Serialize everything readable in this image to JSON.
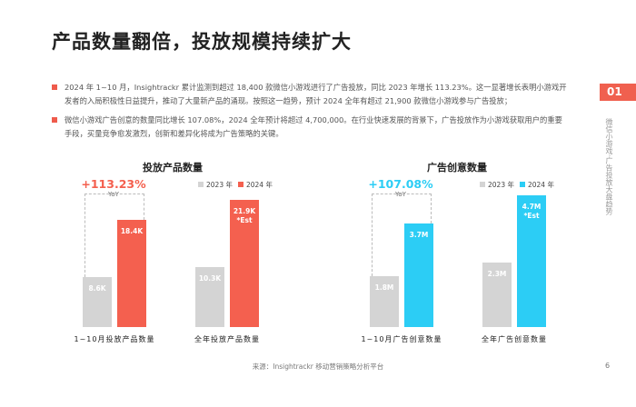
{
  "title": "产品数量翻倍，投放规模持续扩大",
  "bullets": [
    "2024 年 1~10 月，Insightrackr 累计监测到超过 18,400 款微信小游戏进行了广告投放，同比 2023 年增长 113.23%。这一显著增长表明小游戏开发者的入局积极性日益提升，推动了大量新产品的涌现。按照这一趋势，预计 2024 全年有超过 21,900 款微信小游戏参与广告投放；",
    "微信小游戏广告创意的数量同比增长 107.08%，2024 全年预计将超过 4,700,000。在行业快速发展的背景下，广告投放作为小游戏获取用户的重要手段，买量竞争愈发激烈，创新和差异化将成为广告策略的关键。"
  ],
  "section": {
    "number": "01",
    "label": "微信小游戏·广告投放大盘趋势"
  },
  "chart_data": [
    {
      "type": "bar",
      "title": "投放产品数量",
      "yoy": "+113.23%",
      "yoy_label": "YoY",
      "accent": "#f4604f",
      "legend": [
        "2023 年",
        "2024 年"
      ],
      "categories": [
        "1~10月投放产品数量",
        "全年投放产品数量"
      ],
      "series": [
        {
          "name": "2023 年",
          "values": [
            8.6,
            10.3
          ],
          "labels": [
            "8.6K",
            "10.3K"
          ],
          "color": "#d4d4d4"
        },
        {
          "name": "2024 年",
          "values": [
            18.4,
            21.9
          ],
          "labels": [
            "18.4K",
            "21.9K"
          ],
          "color": "#f4604f"
        }
      ],
      "note": "*Est"
    },
    {
      "type": "bar",
      "title": "广告创意数量",
      "yoy": "+107.08%",
      "yoy_label": "YoY",
      "accent": "#2ccdf5",
      "legend": [
        "2023 年",
        "2024 年"
      ],
      "categories": [
        "1~10月广告创意数量",
        "全年广告创意数量"
      ],
      "series": [
        {
          "name": "2023 年",
          "values": [
            1.8,
            2.3
          ],
          "labels": [
            "1.8M",
            "2.3M"
          ],
          "color": "#d4d4d4"
        },
        {
          "name": "2024 年",
          "values": [
            3.7,
            4.7
          ],
          "labels": [
            "3.7M",
            "4.7M"
          ],
          "color": "#2ccdf5"
        }
      ],
      "note": "*Est"
    }
  ],
  "footer": "来源：Insightrackr 移动营销策略分析平台",
  "page": "6"
}
